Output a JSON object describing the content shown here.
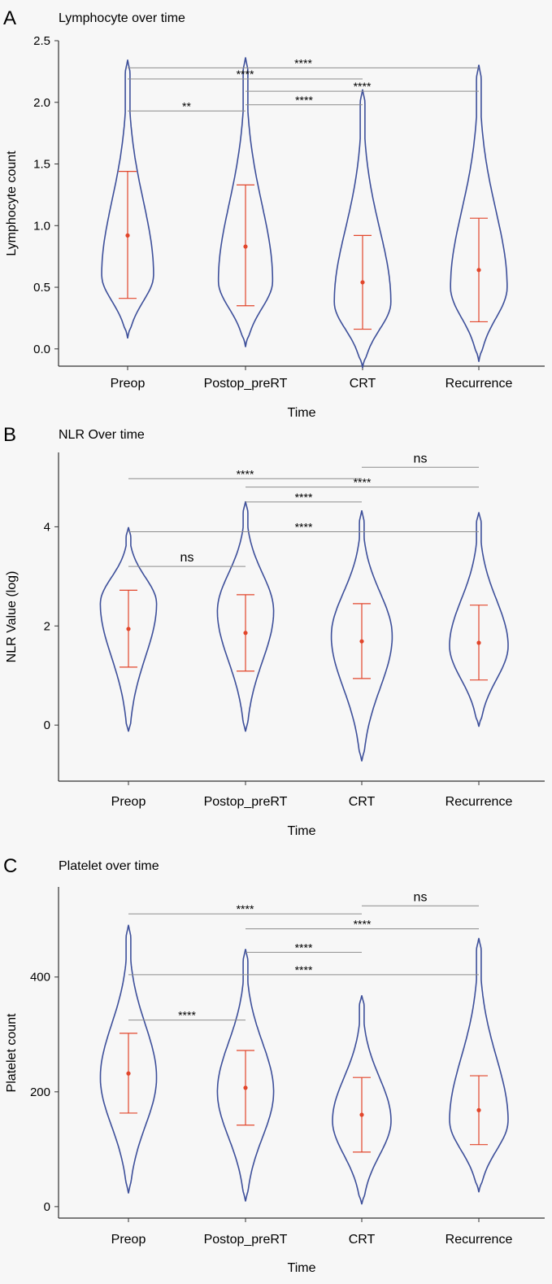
{
  "chart_data": [
    {
      "type": "violin",
      "panel": "A",
      "title": "Lymphocyte over time",
      "xlabel": "Time",
      "ylabel": "Lymphocyte count",
      "categories": [
        "Preop",
        "Postop_preRT",
        "CRT",
        "Recurrence"
      ],
      "ylim": [
        -0.14,
        2.5
      ],
      "yticks": [
        {
          "value": 0.0,
          "label": "0.0"
        },
        {
          "value": 0.5,
          "label": "0.5"
        },
        {
          "value": 1.0,
          "label": "1.0"
        },
        {
          "value": 1.5,
          "label": "1.5"
        },
        {
          "value": 2.0,
          "label": "2.0"
        },
        {
          "value": 2.5,
          "label": "2.5"
        }
      ],
      "violins": [
        {
          "category": "Preop",
          "min": 0.09,
          "max": 2.34,
          "mode": 0.6,
          "width": 0.22,
          "mean": 0.92,
          "sd_low": 0.41,
          "sd_high": 1.44
        },
        {
          "category": "Postop_preRT",
          "min": 0.02,
          "max": 2.36,
          "mode": 0.55,
          "width": 0.23,
          "mean": 0.83,
          "sd_low": 0.35,
          "sd_high": 1.33
        },
        {
          "category": "CRT",
          "min": -0.15,
          "max": 2.1,
          "mode": 0.38,
          "width": 0.24,
          "mean": 0.54,
          "sd_low": 0.16,
          "sd_high": 0.92
        },
        {
          "category": "Recurrence",
          "min": -0.1,
          "max": 2.3,
          "mode": 0.5,
          "width": 0.24,
          "mean": 0.64,
          "sd_low": 0.22,
          "sd_high": 1.06
        }
      ],
      "comparisons": [
        {
          "from": "Preop",
          "to": "Recurrence",
          "y": 2.28,
          "label": "****"
        },
        {
          "from": "Preop",
          "to": "CRT",
          "y": 2.19,
          "label": "****"
        },
        {
          "from": "Postop_preRT",
          "to": "Recurrence",
          "y": 2.09,
          "label": "****"
        },
        {
          "from": "Postop_preRT",
          "to": "CRT",
          "y": 1.98,
          "label": "****"
        },
        {
          "from": "Preop",
          "to": "Postop_preRT",
          "y": 1.93,
          "label": "**"
        }
      ]
    },
    {
      "type": "violin",
      "panel": "B",
      "title": "NLR Over time",
      "xlabel": "Time",
      "ylabel": "NLR Value (log)",
      "categories": [
        "Preop",
        "Postop_preRT",
        "CRT",
        "Recurrence"
      ],
      "ylim": [
        -1.13,
        5.5
      ],
      "yticks": [
        {
          "value": 0,
          "label": "0"
        },
        {
          "value": 2,
          "label": "2"
        },
        {
          "value": 4,
          "label": "4"
        }
      ],
      "violins": [
        {
          "category": "Preop",
          "min": -0.12,
          "max": 3.98,
          "mode": 2.45,
          "width": 0.24,
          "mean": 1.94,
          "sd_low": 1.17,
          "sd_high": 2.72
        },
        {
          "category": "Postop_preRT",
          "min": -0.12,
          "max": 4.5,
          "mode": 2.3,
          "width": 0.24,
          "mean": 1.86,
          "sd_low": 1.09,
          "sd_high": 2.63
        },
        {
          "category": "CRT",
          "min": -0.72,
          "max": 4.32,
          "mode": 1.8,
          "width": 0.26,
          "mean": 1.69,
          "sd_low": 0.94,
          "sd_high": 2.45
        },
        {
          "category": "Recurrence",
          "min": -0.02,
          "max": 4.28,
          "mode": 1.6,
          "width": 0.25,
          "mean": 1.66,
          "sd_low": 0.91,
          "sd_high": 2.42
        }
      ],
      "comparisons": [
        {
          "from": "CRT",
          "to": "Recurrence",
          "y": 5.2,
          "label": "ns"
        },
        {
          "from": "Preop",
          "to": "CRT",
          "y": 4.97,
          "label": "****"
        },
        {
          "from": "Postop_preRT",
          "to": "Recurrence",
          "y": 4.8,
          "label": "****"
        },
        {
          "from": "Postop_preRT",
          "to": "CRT",
          "y": 4.5,
          "label": "****"
        },
        {
          "from": "Preop",
          "to": "Recurrence",
          "y": 3.9,
          "label": "****"
        },
        {
          "from": "Preop",
          "to": "Postop_preRT",
          "y": 3.2,
          "label": "ns"
        }
      ]
    },
    {
      "type": "violin",
      "panel": "C",
      "title": "Platelet over time",
      "xlabel": "Time",
      "ylabel": "Platelet count",
      "categories": [
        "Preop",
        "Postop_preRT",
        "CRT",
        "Recurrence"
      ],
      "ylim": [
        -20,
        557
      ],
      "yticks": [
        {
          "value": 0,
          "label": "0"
        },
        {
          "value": 200,
          "label": "200"
        },
        {
          "value": 400,
          "label": "400"
        }
      ],
      "violins": [
        {
          "category": "Preop",
          "min": 24,
          "max": 490,
          "mode": 225,
          "width": 0.24,
          "mean": 232,
          "sd_low": 163,
          "sd_high": 302
        },
        {
          "category": "Postop_preRT",
          "min": 10,
          "max": 448,
          "mode": 200,
          "width": 0.24,
          "mean": 207,
          "sd_low": 142,
          "sd_high": 272
        },
        {
          "category": "CRT",
          "min": 5,
          "max": 367,
          "mode": 150,
          "width": 0.25,
          "mean": 160,
          "sd_low": 95,
          "sd_high": 225
        },
        {
          "category": "Recurrence",
          "min": 26,
          "max": 467,
          "mode": 150,
          "width": 0.25,
          "mean": 168,
          "sd_low": 108,
          "sd_high": 228
        }
      ],
      "comparisons": [
        {
          "from": "CRT",
          "to": "Recurrence",
          "y": 524,
          "label": "ns"
        },
        {
          "from": "Preop",
          "to": "CRT",
          "y": 510,
          "label": "****"
        },
        {
          "from": "Postop_preRT",
          "to": "Recurrence",
          "y": 484,
          "label": "****"
        },
        {
          "from": "Postop_preRT",
          "to": "CRT",
          "y": 443,
          "label": "****"
        },
        {
          "from": "Preop",
          "to": "Recurrence",
          "y": 404,
          "label": "****"
        },
        {
          "from": "Preop",
          "to": "Postop_preRT",
          "y": 325,
          "label": "****"
        }
      ]
    }
  ]
}
